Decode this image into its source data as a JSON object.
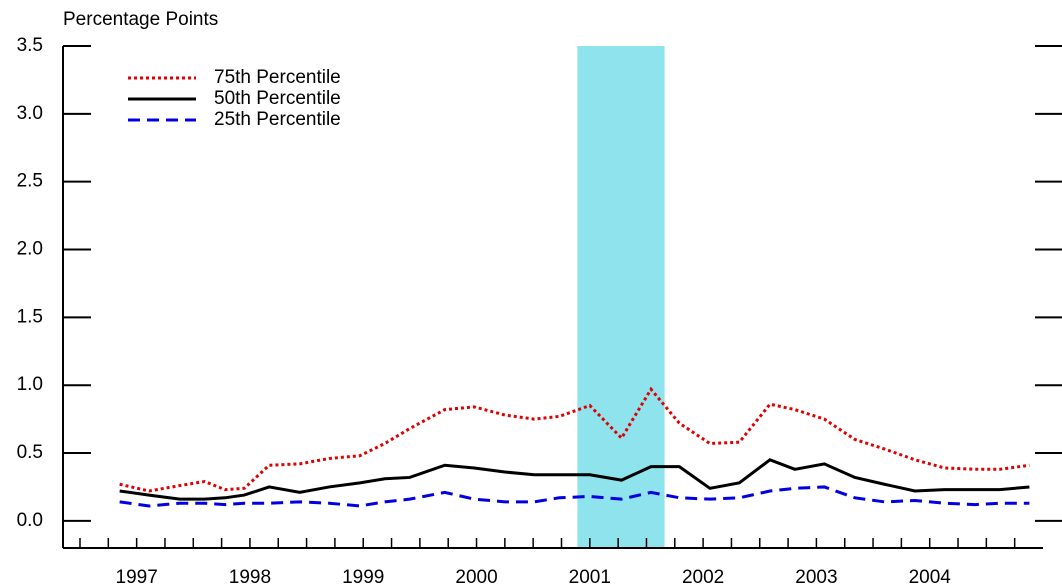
{
  "chart_data": {
    "type": "line",
    "y_label": "Percentage Points",
    "x": [
      1996.85,
      1997.11,
      1997.38,
      1997.6,
      1997.78,
      1997.95,
      1998.17,
      1998.44,
      1998.7,
      1998.97,
      1999.19,
      1999.41,
      1999.72,
      1999.98,
      2000.25,
      2000.51,
      2000.73,
      2001.0,
      2001.28,
      2001.54,
      2001.79,
      2002.06,
      2002.32,
      2002.59,
      2002.81,
      2003.07,
      2003.34,
      2003.6,
      2003.87,
      2004.13,
      2004.4,
      2004.62,
      2004.88
    ],
    "series": [
      {
        "name": "75th Percentile",
        "color": "#e00000",
        "style": "dotted",
        "values": [
          0.27,
          0.22,
          0.26,
          0.29,
          0.23,
          0.24,
          0.41,
          0.42,
          0.46,
          0.48,
          0.57,
          0.68,
          0.82,
          0.84,
          0.78,
          0.75,
          0.77,
          0.85,
          0.61,
          0.97,
          0.72,
          0.57,
          0.58,
          0.86,
          0.82,
          0.75,
          0.6,
          0.53,
          0.45,
          0.39,
          0.38,
          0.38,
          0.41
        ]
      },
      {
        "name": "50th Percentile",
        "color": "#000000",
        "style": "solid",
        "values": [
          0.22,
          0.19,
          0.16,
          0.16,
          0.17,
          0.19,
          0.25,
          0.21,
          0.25,
          0.28,
          0.31,
          0.32,
          0.41,
          0.39,
          0.36,
          0.34,
          0.34,
          0.34,
          0.3,
          0.4,
          0.4,
          0.24,
          0.28,
          0.45,
          0.38,
          0.42,
          0.32,
          0.27,
          0.22,
          0.23,
          0.23,
          0.23,
          0.25
        ]
      },
      {
        "name": "25th Percentile",
        "color": "#0000e0",
        "style": "dashed",
        "values": [
          0.14,
          0.11,
          0.13,
          0.13,
          0.12,
          0.13,
          0.13,
          0.14,
          0.13,
          0.11,
          0.14,
          0.16,
          0.21,
          0.16,
          0.14,
          0.14,
          0.17,
          0.18,
          0.16,
          0.21,
          0.17,
          0.16,
          0.17,
          0.22,
          0.24,
          0.25,
          0.17,
          0.14,
          0.15,
          0.13,
          0.12,
          0.13,
          0.13
        ]
      }
    ],
    "shade": {
      "from": 2000.89,
      "to": 2001.66,
      "color": "#8fe3ec"
    },
    "xlim": [
      1996.35,
      2005
    ],
    "xticks": [
      1997,
      1998,
      1999,
      2000,
      2001,
      2002,
      2003,
      2004
    ],
    "ylim": [
      -0.2,
      3.5
    ],
    "yticks": [
      {
        "value": 0,
        "label": "0.0"
      },
      0.5,
      {
        "value": 1,
        "label": "1.0"
      },
      1.5,
      {
        "value": 2,
        "label": "2.0"
      },
      2.5,
      {
        "value": 3,
        "label": "3.0"
      },
      3.5
    ],
    "legend": "top-left"
  }
}
